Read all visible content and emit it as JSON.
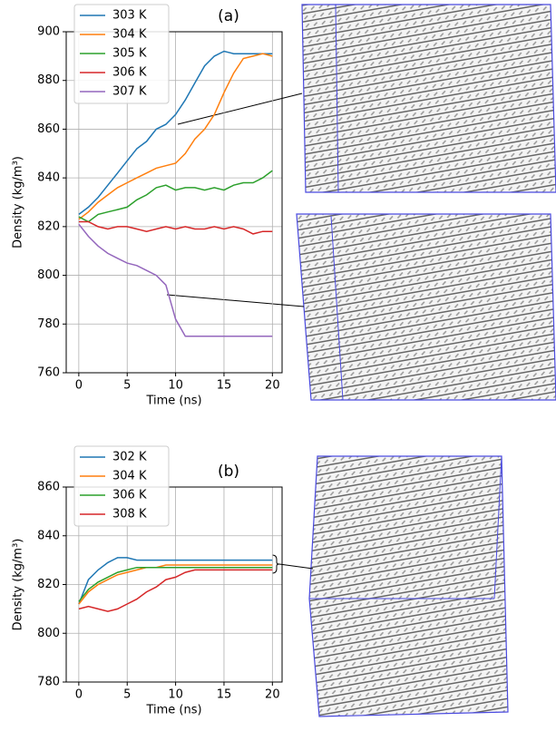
{
  "chart_data": [
    {
      "type": "line",
      "title": "(a)",
      "x_label": "Time (ns)",
      "y_label": "Density (kg/m³)",
      "x": [
        0,
        1,
        2,
        3,
        4,
        5,
        6,
        7,
        8,
        9,
        10,
        11,
        12,
        13,
        14,
        15,
        16,
        17,
        18,
        19,
        20
      ],
      "xlim": [
        -1.3,
        21
      ],
      "xticks": [
        0,
        5,
        10,
        15,
        20
      ],
      "ylim": [
        760,
        900
      ],
      "yticks": [
        760,
        780,
        800,
        820,
        840,
        860,
        880,
        900
      ],
      "grid": true,
      "series": [
        {
          "name": "303 K",
          "color": "#1f77b4",
          "values": [
            825,
            828,
            832,
            837,
            842,
            847,
            852,
            855,
            860,
            862,
            866,
            872,
            879,
            886,
            890,
            892,
            891,
            891,
            891,
            891,
            891
          ]
        },
        {
          "name": "304 K",
          "color": "#ff7f0e",
          "values": [
            823,
            826,
            830,
            833,
            836,
            838,
            840,
            842,
            844,
            845,
            846,
            850,
            856,
            860,
            866,
            875,
            883,
            889,
            890,
            891,
            890
          ]
        },
        {
          "name": "305 K",
          "color": "#2ca02c",
          "values": [
            824,
            822,
            825,
            826,
            827,
            828,
            831,
            833,
            836,
            837,
            835,
            836,
            836,
            835,
            836,
            835,
            837,
            838,
            838,
            840,
            843
          ]
        },
        {
          "name": "306 K",
          "color": "#d62728",
          "values": [
            822,
            822,
            820,
            819,
            820,
            820,
            819,
            818,
            819,
            820,
            819,
            820,
            819,
            819,
            820,
            819,
            820,
            819,
            817,
            818,
            818
          ]
        },
        {
          "name": "307 K",
          "color": "#9467bd",
          "values": [
            821,
            816,
            812,
            809,
            807,
            805,
            804,
            802,
            800,
            796,
            782,
            775,
            775,
            775,
            775,
            775,
            775,
            775,
            775,
            775,
            775
          ]
        }
      ]
    },
    {
      "type": "line",
      "title": "(b)",
      "x_label": "Time (ns)",
      "y_label": "Density (kg/m³)",
      "x": [
        0,
        1,
        2,
        3,
        4,
        5,
        6,
        7,
        8,
        9,
        10,
        11,
        12,
        13,
        14,
        15,
        16,
        17,
        18,
        19,
        20
      ],
      "xlim": [
        -1.3,
        21
      ],
      "xticks": [
        0,
        5,
        10,
        15,
        20
      ],
      "ylim": [
        780,
        860
      ],
      "yticks": [
        780,
        800,
        820,
        840,
        860
      ],
      "grid": true,
      "series": [
        {
          "name": "302 K",
          "color": "#1f77b4",
          "values": [
            812,
            822,
            826,
            829,
            831,
            831,
            830,
            830,
            830,
            830,
            830,
            830,
            830,
            830,
            830,
            830,
            830,
            830,
            830,
            830,
            830
          ]
        },
        {
          "name": "304 K",
          "color": "#ff7f0e",
          "values": [
            812,
            817,
            820,
            822,
            824,
            825,
            826,
            827,
            827,
            828,
            828,
            828,
            828,
            828,
            828,
            828,
            828,
            828,
            828,
            828,
            828
          ]
        },
        {
          "name": "306 K",
          "color": "#2ca02c",
          "values": [
            813,
            818,
            821,
            823,
            825,
            826,
            827,
            827,
            827,
            827,
            827,
            827,
            827,
            827,
            827,
            827,
            827,
            827,
            827,
            827,
            827
          ]
        },
        {
          "name": "308 K",
          "color": "#d62728",
          "values": [
            810,
            811,
            810,
            809,
            810,
            812,
            814,
            817,
            819,
            822,
            823,
            825,
            826,
            826,
            826,
            826,
            826,
            826,
            826,
            826,
            826
          ]
        }
      ]
    }
  ]
}
